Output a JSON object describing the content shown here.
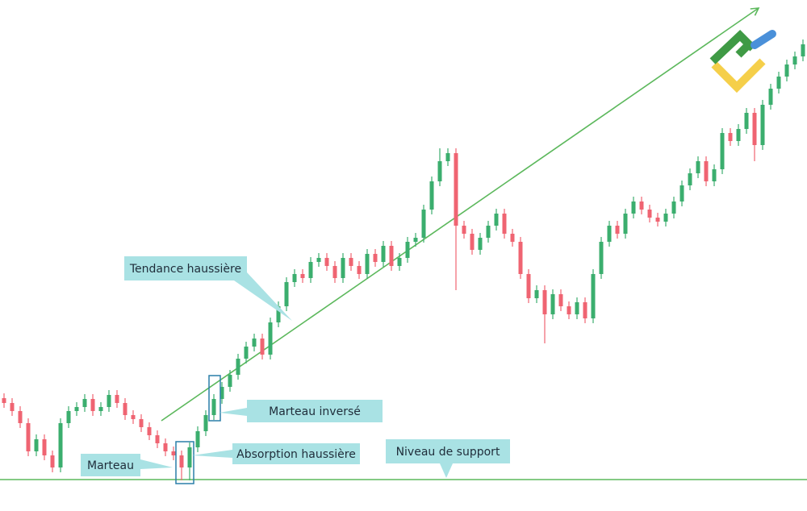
{
  "chart_data": {
    "type": "candlestick",
    "up_color": "#3bae6e",
    "down_color": "#ef6472",
    "line_color": "#5cb85c",
    "ylim": [
      0,
      634
    ],
    "open": [
      140,
      134,
      124,
      109,
      74,
      89,
      69,
      54,
      109,
      124,
      129,
      139,
      124,
      129,
      144,
      134,
      119,
      114,
      104,
      94,
      84,
      74,
      69,
      54,
      79,
      99,
      119,
      139,
      154,
      169,
      189,
      204,
      214,
      194,
      234,
      254,
      284,
      294,
      289,
      309,
      314,
      304,
      289,
      314,
      304,
      294,
      319,
      309,
      329,
      304,
      314,
      334,
      339,
      374,
      409,
      434,
      444,
      354,
      344,
      324,
      339,
      354,
      369,
      344,
      334,
      294,
      264,
      274,
      244,
      269,
      254,
      244,
      259,
      239,
      294,
      334,
      354,
      344,
      369,
      384,
      374,
      364,
      359,
      369,
      384,
      404,
      419,
      434,
      409,
      424,
      469,
      459,
      474,
      494,
      454,
      504,
      524,
      539,
      554,
      564
    ],
    "high": [
      146,
      140,
      130,
      115,
      95,
      95,
      75,
      115,
      130,
      135,
      145,
      145,
      135,
      150,
      150,
      140,
      125,
      120,
      110,
      100,
      90,
      80,
      75,
      85,
      105,
      125,
      145,
      160,
      175,
      195,
      210,
      220,
      220,
      240,
      260,
      290,
      300,
      300,
      315,
      320,
      320,
      310,
      320,
      320,
      310,
      325,
      325,
      335,
      335,
      320,
      340,
      345,
      380,
      415,
      450,
      450,
      450,
      360,
      350,
      345,
      360,
      375,
      375,
      350,
      340,
      300,
      280,
      280,
      275,
      275,
      260,
      265,
      265,
      300,
      340,
      360,
      360,
      375,
      390,
      390,
      380,
      370,
      375,
      390,
      410,
      425,
      440,
      440,
      430,
      475,
      475,
      480,
      500,
      500,
      510,
      530,
      545,
      560,
      570,
      585
    ],
    "low": [
      128,
      118,
      103,
      68,
      68,
      63,
      48,
      48,
      103,
      118,
      123,
      118,
      118,
      123,
      128,
      113,
      108,
      98,
      88,
      78,
      68,
      63,
      38,
      38,
      73,
      93,
      113,
      133,
      148,
      163,
      183,
      198,
      188,
      188,
      228,
      248,
      278,
      283,
      283,
      303,
      298,
      283,
      283,
      298,
      288,
      288,
      303,
      303,
      298,
      298,
      308,
      328,
      333,
      368,
      403,
      428,
      274,
      338,
      318,
      318,
      333,
      348,
      338,
      328,
      288,
      258,
      258,
      208,
      238,
      248,
      238,
      238,
      233,
      233,
      288,
      328,
      338,
      338,
      363,
      368,
      358,
      353,
      353,
      363,
      378,
      398,
      413,
      403,
      403,
      418,
      453,
      453,
      468,
      434,
      448,
      498,
      518,
      533,
      548,
      558
    ],
    "close": [
      134,
      124,
      109,
      74,
      89,
      69,
      54,
      109,
      124,
      129,
      139,
      124,
      129,
      144,
      134,
      119,
      114,
      104,
      94,
      84,
      74,
      69,
      54,
      79,
      99,
      119,
      139,
      154,
      169,
      189,
      204,
      214,
      194,
      234,
      254,
      284,
      294,
      289,
      309,
      314,
      304,
      289,
      314,
      304,
      294,
      319,
      309,
      329,
      304,
      314,
      334,
      339,
      374,
      409,
      434,
      444,
      354,
      344,
      324,
      339,
      354,
      369,
      344,
      334,
      294,
      264,
      274,
      244,
      269,
      254,
      244,
      259,
      239,
      294,
      334,
      354,
      344,
      369,
      384,
      374,
      364,
      359,
      369,
      384,
      404,
      419,
      434,
      409,
      424,
      469,
      459,
      474,
      494,
      454,
      504,
      524,
      539,
      554,
      564,
      579
    ],
    "support_level": 39,
    "trend_line": {
      "x": [
        19.5,
        93.5
      ],
      "y": [
        112,
        624
      ]
    },
    "annotations": [
      "Tendance haussière",
      "Marteau inversé",
      "Absorption haussière",
      "Niveau de support",
      "Marteau"
    ]
  }
}
